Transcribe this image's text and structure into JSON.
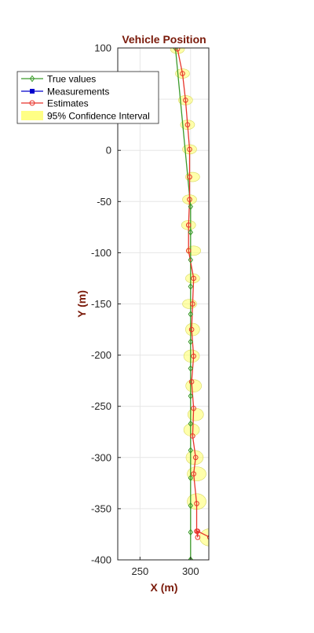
{
  "colors": {
    "title": "#7a1a0a",
    "axis_label": "#7a1a0a",
    "true_values": "#3a9a2a",
    "measurements": "#0000cc",
    "estimates": "#e8332a",
    "confidence_fill": "#ffff66",
    "confidence_edge": "#d8d860",
    "grid": "#e6e6e6"
  },
  "chart_data": {
    "type": "line",
    "title": "Vehicle Position",
    "xlabel": "X (m)",
    "ylabel": "Y (m)",
    "xlim": [
      228,
      318
    ],
    "ylim": [
      -400,
      100
    ],
    "xticks": [
      250,
      300
    ],
    "yticks": [
      100,
      50,
      0,
      -50,
      -100,
      -150,
      -200,
      -250,
      -300,
      -350,
      -400
    ],
    "grid": true,
    "legend_position": "top-left",
    "legend": [
      "True values",
      "Measurements",
      "Estimates",
      "95% Confidence Interval"
    ],
    "series": [
      {
        "name": "True values",
        "x": [
          285,
          300,
          300,
          300,
          300,
          300,
          300,
          300,
          300,
          300,
          300,
          300,
          300,
          300,
          300,
          300,
          300,
          300,
          300
        ],
        "y": [
          100,
          -55,
          -80,
          -107,
          -133,
          -160,
          -187,
          -213,
          -240,
          -267,
          -293,
          -320,
          -347,
          -373,
          -400,
          -400,
          -400,
          -400,
          -400
        ]
      },
      {
        "name": "Measurements",
        "x": [],
        "y": []
      },
      {
        "name": "Estimates",
        "x": [
          287,
          292,
          295,
          297,
          299,
          299,
          299,
          298,
          298,
          303,
          302,
          301,
          303,
          301,
          303,
          302,
          305,
          303,
          306,
          306,
          307,
          307,
          319,
          320
        ],
        "y": [
          99,
          75,
          49,
          25,
          1,
          -26,
          -48,
          -73,
          -98,
          -125,
          -150,
          -175,
          -201,
          -226,
          -252,
          -279,
          -300,
          -316,
          -345,
          -372,
          -378,
          -372,
          -378,
          -400
        ]
      }
    ],
    "confidence_ellipses": [
      {
        "x": 287,
        "y": 99,
        "rx": 9,
        "ry": 6
      },
      {
        "x": 292,
        "y": 75,
        "rx": 9,
        "ry": 6
      },
      {
        "x": 295,
        "y": 49,
        "rx": 9,
        "ry": 6
      },
      {
        "x": 297,
        "y": 25,
        "rx": 9,
        "ry": 6
      },
      {
        "x": 299,
        "y": 1,
        "rx": 9,
        "ry": 6
      },
      {
        "x": 302,
        "y": -26,
        "rx": 9,
        "ry": 6
      },
      {
        "x": 299,
        "y": -48,
        "rx": 9,
        "ry": 6
      },
      {
        "x": 298,
        "y": -73,
        "rx": 9,
        "ry": 6
      },
      {
        "x": 303,
        "y": -98,
        "rx": 9,
        "ry": 6
      },
      {
        "x": 302,
        "y": -125,
        "rx": 9,
        "ry": 6
      },
      {
        "x": 299,
        "y": -150,
        "rx": 9,
        "ry": 6
      },
      {
        "x": 302,
        "y": -175,
        "rx": 9,
        "ry": 8
      },
      {
        "x": 301,
        "y": -201,
        "rx": 10,
        "ry": 8
      },
      {
        "x": 303,
        "y": -230,
        "rx": 10,
        "ry": 8
      },
      {
        "x": 305,
        "y": -258,
        "rx": 10,
        "ry": 8
      },
      {
        "x": 301,
        "y": -273,
        "rx": 10,
        "ry": 8
      },
      {
        "x": 304,
        "y": -300,
        "rx": 11,
        "ry": 9
      },
      {
        "x": 306,
        "y": -316,
        "rx": 12,
        "ry": 9
      },
      {
        "x": 306,
        "y": -343,
        "rx": 12,
        "ry": 10
      },
      {
        "x": 319,
        "y": -378,
        "rx": 13,
        "ry": 11
      }
    ]
  }
}
